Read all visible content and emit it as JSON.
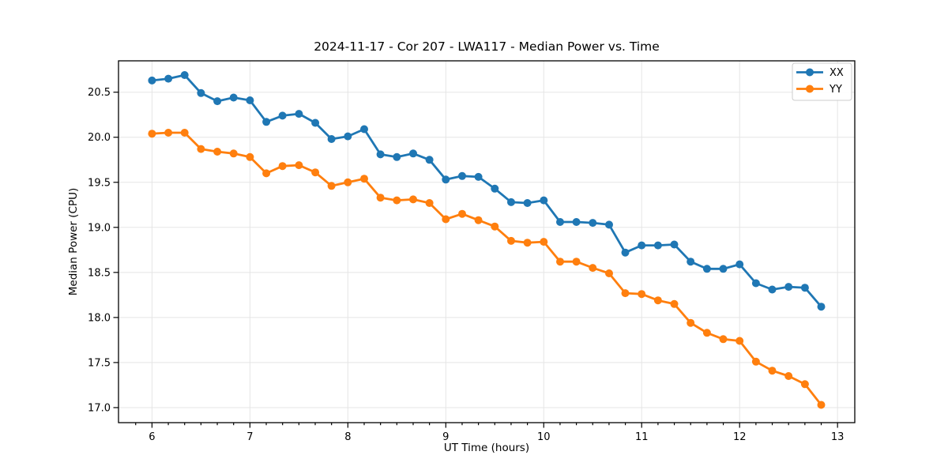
{
  "title": "2024-11-17 - Cor 207 - LWA117 - Median Power vs. Time",
  "chart_data": {
    "type": "line",
    "title": "2024-11-17 - Cor 207 - LWA117 - Median Power vs. Time",
    "xlabel": "UT Time (hours)",
    "ylabel": "Median Power (CPU)",
    "grid": true,
    "legend_position": "upper right",
    "marker": "circle",
    "xlim": [
      5.658,
      13.176
    ],
    "ylim": [
      16.833,
      20.848
    ],
    "xticks": [
      6,
      7,
      8,
      9,
      10,
      11,
      12,
      13
    ],
    "yticks": [
      17.0,
      17.5,
      18.0,
      18.5,
      19.0,
      19.5,
      20.0,
      20.5
    ],
    "x_minor_step_hours": 0.1667,
    "colors": {
      "grid": "#e5e5e5",
      "axis": "#000000",
      "background": "#ffffff"
    },
    "x": [
      6,
      6.167,
      6.333,
      6.5,
      6.667,
      6.833,
      7,
      7.167,
      7.333,
      7.5,
      7.667,
      7.833,
      8,
      8.167,
      8.333,
      8.5,
      8.667,
      8.833,
      9,
      9.167,
      9.333,
      9.5,
      9.667,
      9.833,
      10,
      10.167,
      10.333,
      10.5,
      10.667,
      10.833,
      11,
      11.167,
      11.333,
      11.5,
      11.667,
      11.833,
      12,
      12.167,
      12.333,
      12.5,
      12.667,
      12.833
    ],
    "series": [
      {
        "name": "XX",
        "color": "#1f77b4",
        "values": [
          20.63,
          20.65,
          20.69,
          20.49,
          20.4,
          20.44,
          20.41,
          20.17,
          20.24,
          20.26,
          20.16,
          19.98,
          20.01,
          20.09,
          19.81,
          19.78,
          19.82,
          19.75,
          19.53,
          19.57,
          19.56,
          19.43,
          19.28,
          19.27,
          19.3,
          19.06,
          19.06,
          19.05,
          19.03,
          18.72,
          18.8,
          18.8,
          18.81,
          18.62,
          18.54,
          18.54,
          18.59,
          18.38,
          18.31,
          18.34,
          18.33,
          18.12
        ]
      },
      {
        "name": "YY",
        "color": "#ff7f0e",
        "values": [
          20.04,
          20.05,
          20.05,
          19.87,
          19.84,
          19.82,
          19.78,
          19.6,
          19.68,
          19.69,
          19.61,
          19.46,
          19.5,
          19.54,
          19.33,
          19.3,
          19.31,
          19.27,
          19.09,
          19.15,
          19.08,
          19.01,
          18.85,
          18.83,
          18.84,
          18.62,
          18.62,
          18.55,
          18.49,
          18.27,
          18.26,
          18.19,
          18.15,
          17.94,
          17.83,
          17.76,
          17.74,
          17.51,
          17.41,
          17.35,
          17.26,
          17.03
        ]
      }
    ]
  }
}
